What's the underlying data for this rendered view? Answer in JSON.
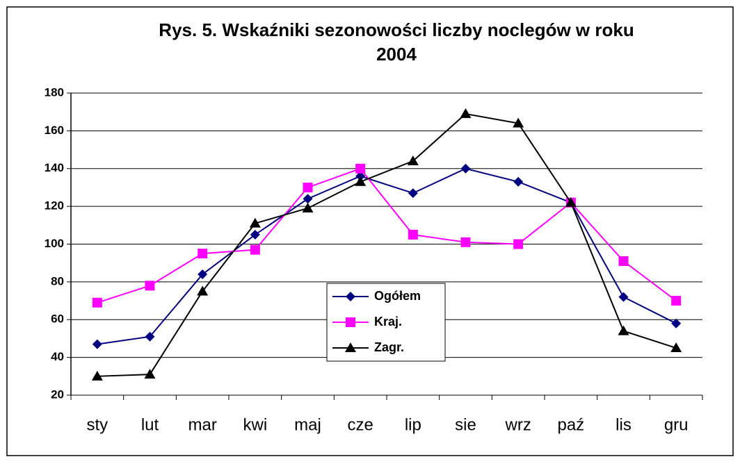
{
  "chart_data": {
    "type": "line",
    "title_lines": [
      "Rys. 5. Wskaźniki sezonowości liczby noclegów w roku",
      "2004"
    ],
    "categories": [
      "sty",
      "lut",
      "mar",
      "kwi",
      "maj",
      "cze",
      "lip",
      "sie",
      "wrz",
      "paź",
      "lis",
      "gru"
    ],
    "series": [
      {
        "name": "Ogółem",
        "color": "#000080",
        "marker": "diamond",
        "values": [
          47,
          51,
          84,
          105,
          124,
          136,
          127,
          140,
          133,
          122,
          72,
          58
        ]
      },
      {
        "name": "Kraj.",
        "color": "#ff00ff",
        "marker": "square",
        "values": [
          69,
          78,
          95,
          97,
          130,
          140,
          105,
          101,
          100,
          122,
          91,
          70
        ]
      },
      {
        "name": "Zagr.",
        "color": "#000000",
        "marker": "triangle",
        "values": [
          30,
          31,
          75,
          111,
          119,
          133,
          144,
          169,
          164,
          122,
          54,
          45
        ]
      }
    ],
    "ylim": [
      20,
      180
    ],
    "yticks": [
      20,
      40,
      60,
      80,
      100,
      120,
      140,
      160,
      180
    ],
    "grid": true
  }
}
